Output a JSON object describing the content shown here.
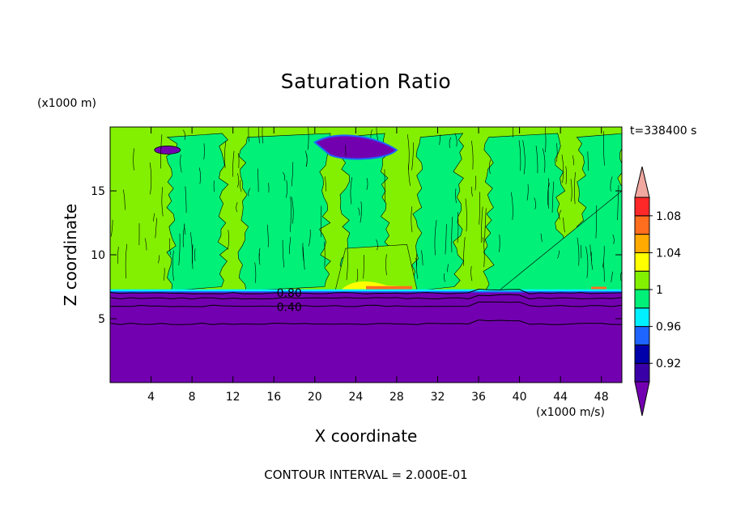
{
  "chart_data": {
    "type": "heatmap",
    "title": "Saturation Ratio",
    "time_label": "t=338400 s",
    "xlabel": "X coordinate",
    "ylabel": "Z coordinate",
    "x_unit": "(x1000 m/s)",
    "y_unit": "(x1000 m)",
    "footer": "CONTOUR INTERVAL = 2.000E-01",
    "xlim": [
      0,
      50
    ],
    "ylim": [
      0,
      20
    ],
    "x_ticks": [
      4,
      8,
      12,
      16,
      20,
      24,
      28,
      32,
      36,
      40,
      44,
      48
    ],
    "y_ticks": [
      5,
      10,
      15
    ],
    "colorbar": {
      "labels": [
        "0.92",
        "0.96",
        "1",
        "1.04",
        "1.08"
      ],
      "bins": [
        {
          "color": "#7300b0"
        },
        {
          "color": "#3a00a8"
        },
        {
          "color": "#0000aa"
        },
        {
          "color": "#1e64ff"
        },
        {
          "color": "#00f0ff"
        },
        {
          "color": "#00f078"
        },
        {
          "color": "#82f000"
        },
        {
          "color": "#ffff00"
        },
        {
          "color": "#ffaa00"
        },
        {
          "color": "#ff6d1e"
        },
        {
          "color": "#ff2828"
        },
        {
          "color": "#f0a8a0"
        }
      ]
    },
    "contour_labels": [
      "0.80",
      "0.40"
    ],
    "background_levels": {
      "upper_fill": "#82f000",
      "mid_fill": "#00f078",
      "lower_fill": "#7300b0",
      "saturation_layer_top_km": 7.2
    }
  }
}
